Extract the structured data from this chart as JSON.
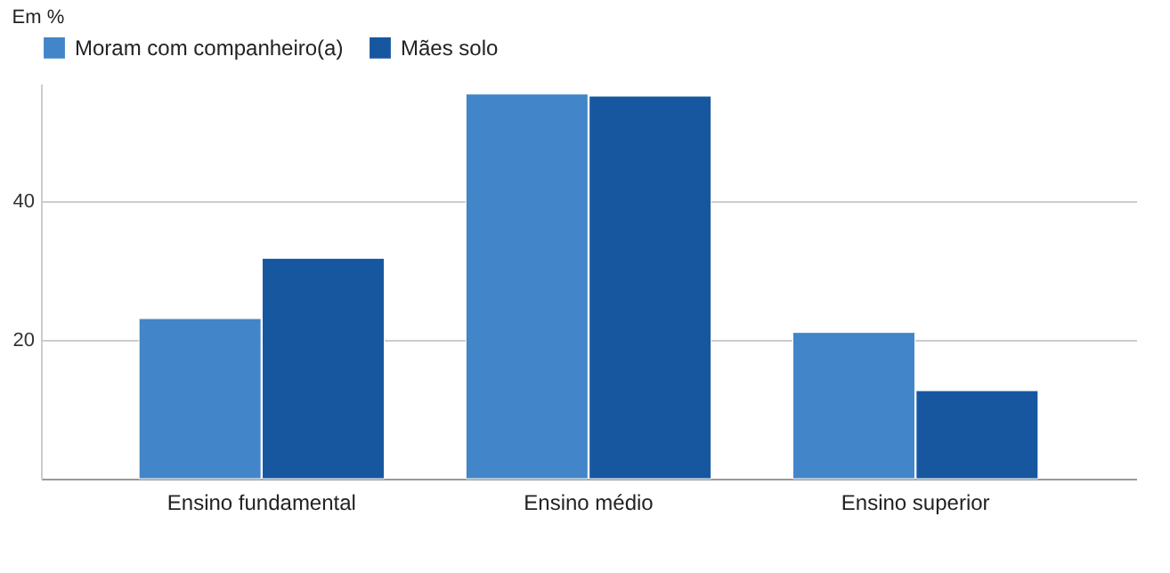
{
  "chart_data": {
    "type": "bar",
    "title": "Em %",
    "categories": [
      "Ensino fundamental",
      "Ensino médio",
      "Ensino superior"
    ],
    "series": [
      {
        "name": "Moram com companheiro(a)",
        "color": "#4285c8",
        "values": [
          23.1,
          55.5,
          21.1
        ]
      },
      {
        "name": "Mães solo",
        "color": "#1757a0",
        "values": [
          31.8,
          55.2,
          12.7
        ]
      }
    ],
    "ylim": [
      0,
      57
    ],
    "yticks": [
      20,
      40
    ],
    "grid": "y",
    "legend": "top left"
  }
}
